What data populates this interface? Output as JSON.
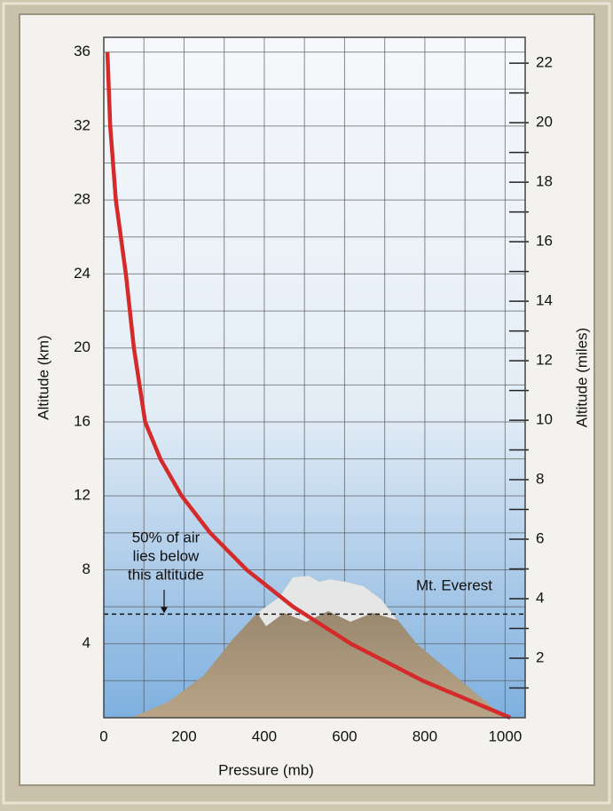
{
  "chart_data": {
    "type": "line",
    "x_label": "Pressure (mb)",
    "y_label": "Altitude (km)",
    "y2_label": "Altitude (miles)",
    "xlim": [
      0,
      1050
    ],
    "ylim": [
      0,
      36.8
    ],
    "y2lim": [
      0,
      22.87
    ],
    "xticks": [
      0,
      200,
      400,
      600,
      800,
      1000
    ],
    "yticks": [
      4,
      8,
      12,
      16,
      20,
      24,
      28,
      32,
      36
    ],
    "y2ticks": [
      2,
      4,
      6,
      8,
      10,
      12,
      14,
      16,
      18,
      20,
      22
    ],
    "y2minor": [
      1,
      3,
      5,
      7,
      9,
      11,
      13,
      15,
      17,
      19,
      21
    ],
    "xgrid": [
      100,
      200,
      300,
      400,
      500,
      600,
      700,
      800,
      900,
      1000
    ],
    "ygrid": [
      2,
      4,
      6,
      8,
      10,
      12,
      14,
      16,
      18,
      20,
      22,
      24,
      26,
      28,
      30,
      32,
      34,
      36
    ],
    "grid": true,
    "series": [
      {
        "name": "Pressure",
        "color": "#d42a2a",
        "x": [
          9,
          16,
          30,
          55,
          75,
          103,
          141,
          194,
          265,
          356,
          472,
          616,
          795,
          1013
        ],
        "values": [
          36,
          32,
          28,
          24,
          20,
          16,
          14,
          12,
          10,
          8,
          6,
          4,
          2,
          0
        ]
      }
    ],
    "reference_line": {
      "value": 5.6,
      "label": [
        "50% of air",
        "lies below",
        "this altitude"
      ]
    },
    "annotation": "Mt. Everest"
  }
}
